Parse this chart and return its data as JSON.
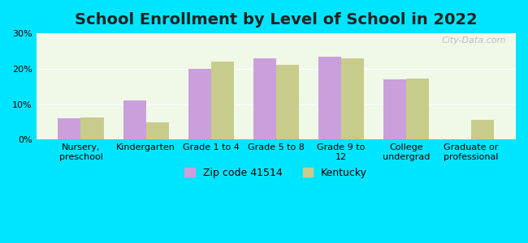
{
  "title": "School Enrollment by Level of School in 2022",
  "categories": [
    "Nursery,\npreschool",
    "Kindergarten",
    "Grade 1 to 4",
    "Grade 5 to 8",
    "Grade 9 to\n12",
    "College\nundergrad",
    "Graduate or\nprofessional"
  ],
  "zip_values": [
    6.0,
    11.0,
    20.0,
    23.0,
    23.5,
    17.0,
    0.0
  ],
  "ky_values": [
    6.2,
    4.8,
    22.0,
    21.0,
    23.0,
    17.2,
    5.5
  ],
  "zip_color": "#c9a0dc",
  "ky_color": "#c8cc8a",
  "zip_label": "Zip code 41514",
  "ky_label": "Kentucky",
  "ylim": [
    0,
    30
  ],
  "yticks": [
    0,
    10,
    20,
    30
  ],
  "background_outer": "#00e5ff",
  "background_inner": "#f0f8e8",
  "title_fontsize": 14,
  "tick_fontsize": 8,
  "legend_fontsize": 9,
  "watermark": "City-Data.com"
}
